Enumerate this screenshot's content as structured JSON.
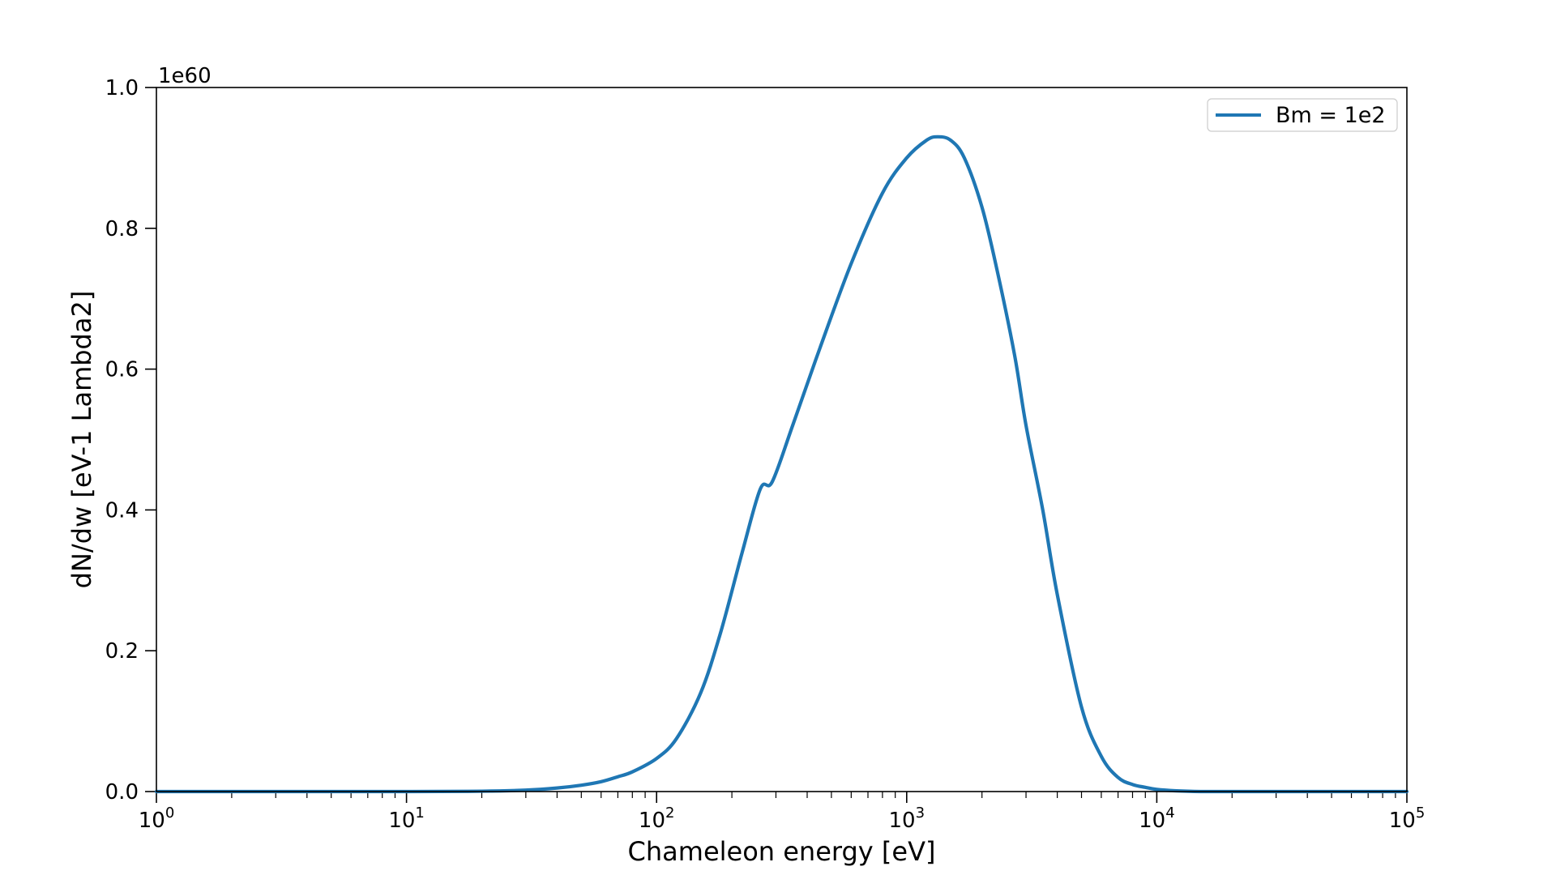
{
  "chart_data": {
    "type": "line",
    "xlabel": "Chameleon energy [eV]",
    "ylabel": "dN/dw [eV-1 Lambda2]",
    "y_offset_label": "1e60",
    "xscale": "log",
    "xlim": [
      1,
      100000
    ],
    "ylim": [
      0,
      1.0
    ],
    "x_ticks": [
      {
        "base": "10",
        "exp": "0",
        "value": 1
      },
      {
        "base": "10",
        "exp": "1",
        "value": 10
      },
      {
        "base": "10",
        "exp": "2",
        "value": 100
      },
      {
        "base": "10",
        "exp": "3",
        "value": 1000
      },
      {
        "base": "10",
        "exp": "4",
        "value": 10000
      },
      {
        "base": "10",
        "exp": "5",
        "value": 100000
      }
    ],
    "y_ticks": [
      {
        "label": "0.0",
        "value": 0.0
      },
      {
        "label": "0.2",
        "value": 0.2
      },
      {
        "label": "0.4",
        "value": 0.4
      },
      {
        "label": "0.6",
        "value": 0.6
      },
      {
        "label": "0.8",
        "value": 0.8
      },
      {
        "label": "1.0",
        "value": 1.0
      }
    ],
    "grid": false,
    "legend_position": "top-right",
    "series": [
      {
        "name": "Bm = 1e2",
        "color": "#1f77b4",
        "x": [
          1,
          10,
          20,
          30,
          40,
          50,
          60,
          70,
          80,
          100,
          120,
          150,
          180,
          220,
          260,
          290,
          350,
          450,
          600,
          800,
          1000,
          1200,
          1330,
          1500,
          1700,
          2000,
          2300,
          2700,
          3000,
          3500,
          4000,
          5000,
          6000,
          7000,
          8000,
          9000,
          10000,
          12000,
          15000,
          20000,
          100000
        ],
        "y": [
          0.0,
          0.0,
          0.0005,
          0.002,
          0.005,
          0.009,
          0.014,
          0.021,
          0.028,
          0.047,
          0.075,
          0.14,
          0.225,
          0.34,
          0.43,
          0.44,
          0.52,
          0.63,
          0.75,
          0.85,
          0.9,
          0.925,
          0.93,
          0.925,
          0.9,
          0.83,
          0.74,
          0.62,
          0.52,
          0.4,
          0.28,
          0.12,
          0.05,
          0.02,
          0.01,
          0.006,
          0.003,
          0.001,
          0.0,
          0.0,
          0.0
        ]
      }
    ]
  }
}
